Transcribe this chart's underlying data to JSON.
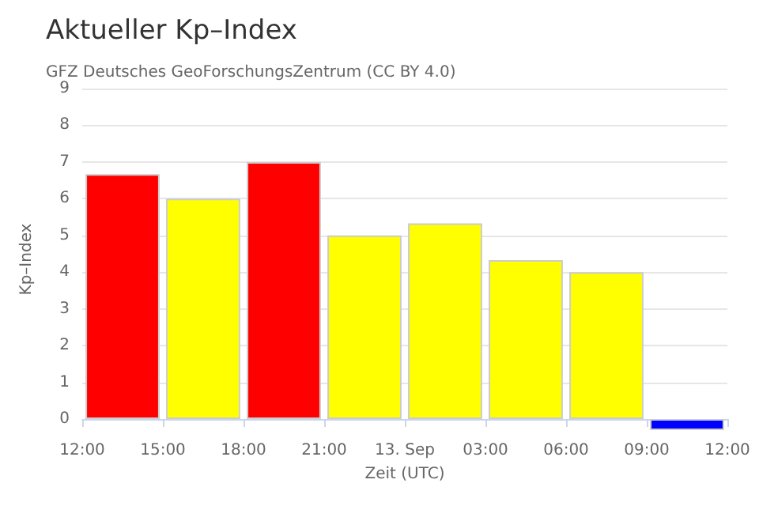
{
  "chart_data": {
    "type": "bar",
    "title": "Aktueller Kp–Index",
    "subtitle": "GFZ Deutsches GeoForschungsZentrum (CC BY 4.0)",
    "xlabel": "Zeit (UTC)",
    "ylabel": "Kp–Index",
    "x": [
      "--09-12T13:30",
      "--09-12T16:30",
      "--09-12T19:30",
      "--09-12T22:30",
      "--09-13T01:30",
      "--09-13T04:30",
      "--09-13T07:30",
      "--09-13T10:30"
    ],
    "values": [
      6.67,
      6.0,
      7.0,
      5.0,
      5.33,
      4.33,
      4.0,
      -0.3
    ],
    "colors": [
      "#ff0000",
      "#ffff00",
      "#ff0000",
      "#ffff00",
      "#ffff00",
      "#ffff00",
      "#ffff00",
      "#0000ff"
    ],
    "xlim": [
      "--09-12T12:00",
      "--09-13T12:00"
    ],
    "xticks": [
      {
        "value": "--09-12T12:00",
        "label": "12:00"
      },
      {
        "value": "--09-12T15:00",
        "label": "15:00"
      },
      {
        "value": "--09-12T18:00",
        "label": "18:00"
      },
      {
        "value": "--09-12T21:00",
        "label": "21:00"
      },
      {
        "value": "--09-13T00:00",
        "label": "13. Sep"
      },
      {
        "value": "--09-13T03:00",
        "label": "03:00"
      },
      {
        "value": "--09-13T06:00",
        "label": "06:00"
      },
      {
        "value": "--09-13T09:00",
        "label": "09:00"
      },
      {
        "value": "--09-13T12:00",
        "label": "12:00"
      }
    ],
    "ylim": [
      -0.3,
      9
    ],
    "yticks": [
      0,
      1,
      2,
      3,
      4,
      5,
      6,
      7,
      8,
      9
    ],
    "grid": "y"
  }
}
